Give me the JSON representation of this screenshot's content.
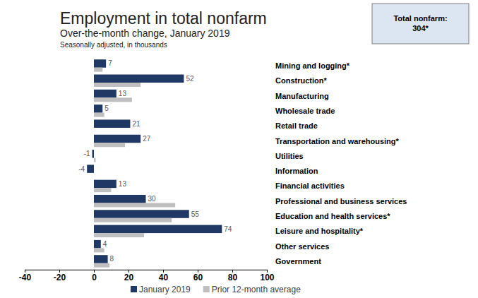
{
  "chart_data": {
    "type": "bar",
    "orientation": "horizontal",
    "title": "Employment in total nonfarm",
    "subtitle": "Over-the-month change, January 2019",
    "caption": "Seasonally adjusted, in thousands",
    "annotations": [
      "Total nonfarm:",
      "304*"
    ],
    "categories": [
      "Mining and logging*",
      "Construction*",
      "Manufacturing",
      "Wholesale trade",
      "Retail trade",
      "Transportation and warehousing*",
      "Utilities",
      "Information",
      "Financial activities",
      "Professional and business services",
      "Education and health services*",
      "Leisure and hospitality*",
      "Other services",
      "Government"
    ],
    "series": [
      {
        "name": "January 2019",
        "color": "#1f3864",
        "data_labels": true,
        "values": [
          7,
          52,
          13,
          5,
          21,
          27,
          -1,
          -4,
          13,
          30,
          55,
          74,
          4,
          8
        ]
      },
      {
        "name": "Prior 12-month average",
        "color": "#bfbfbf",
        "data_labels": false,
        "values": [
          5,
          27,
          22,
          6,
          0,
          18,
          1,
          0,
          10,
          47,
          45,
          29,
          6,
          9
        ]
      }
    ],
    "xlim": [
      -40,
      100
    ],
    "xticks": [
      -40,
      -20,
      0,
      20,
      40,
      60,
      80,
      100
    ],
    "grid": false,
    "legend": "bottom"
  }
}
